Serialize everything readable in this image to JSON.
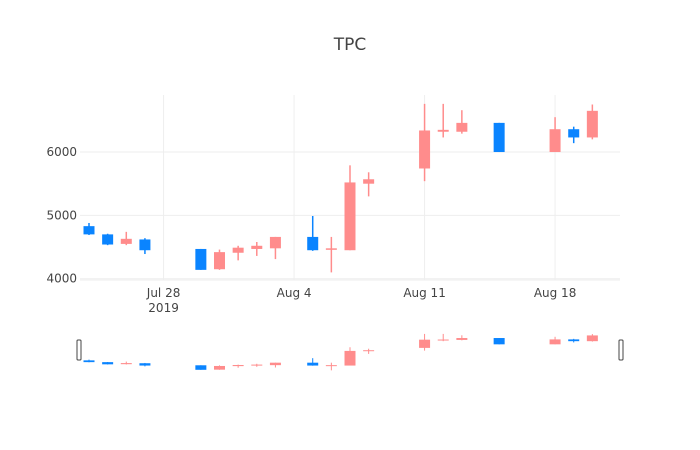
{
  "chart_data": {
    "type": "candlestick",
    "title": "TPC",
    "x_ticks": [
      {
        "date": "2019-07-28",
        "label": "Jul 28",
        "sublabel": "2019"
      },
      {
        "date": "2019-08-04",
        "label": "Aug 4",
        "sublabel": ""
      },
      {
        "date": "2019-08-11",
        "label": "Aug 11",
        "sublabel": ""
      },
      {
        "date": "2019-08-18",
        "label": "Aug 18",
        "sublabel": ""
      }
    ],
    "y_ticks": [
      4000,
      5000,
      6000
    ],
    "y_tick_labels": [
      "4000",
      "5000",
      "6000"
    ],
    "xlim": [
      "2019-07-24",
      "2019-08-21"
    ],
    "ylim": [
      3980,
      6900
    ],
    "grid": true,
    "rangeslider": true,
    "increasing_color": "#ff8c8c",
    "decreasing_color": "#0a84ff",
    "candles": [
      {
        "date": "2019-07-24",
        "open": 4830,
        "high": 4880,
        "low": 4690,
        "close": 4700
      },
      {
        "date": "2019-07-25",
        "open": 4700,
        "high": 4710,
        "low": 4530,
        "close": 4540
      },
      {
        "date": "2019-07-26",
        "open": 4550,
        "high": 4740,
        "low": 4530,
        "close": 4630
      },
      {
        "date": "2019-07-27",
        "open": 4620,
        "high": 4640,
        "low": 4390,
        "close": 4450
      },
      {
        "date": "2019-07-30",
        "open": 4470,
        "high": 4470,
        "low": 4140,
        "close": 4140
      },
      {
        "date": "2019-07-31",
        "open": 4150,
        "high": 4460,
        "low": 4140,
        "close": 4420
      },
      {
        "date": "2019-08-01",
        "open": 4410,
        "high": 4520,
        "low": 4290,
        "close": 4490
      },
      {
        "date": "2019-08-02",
        "open": 4470,
        "high": 4580,
        "low": 4360,
        "close": 4520
      },
      {
        "date": "2019-08-03",
        "open": 4480,
        "high": 4660,
        "low": 4310,
        "close": 4660
      },
      {
        "date": "2019-08-05",
        "open": 4660,
        "high": 4990,
        "low": 4440,
        "close": 4450
      },
      {
        "date": "2019-08-06",
        "open": 4460,
        "high": 4660,
        "low": 4100,
        "close": 4480
      },
      {
        "date": "2019-08-07",
        "open": 4450,
        "high": 5790,
        "low": 4450,
        "close": 5520
      },
      {
        "date": "2019-08-08",
        "open": 5500,
        "high": 5680,
        "low": 5300,
        "close": 5570
      },
      {
        "date": "2019-08-11",
        "open": 5740,
        "high": 6760,
        "low": 5540,
        "close": 6340
      },
      {
        "date": "2019-08-12",
        "open": 6320,
        "high": 6760,
        "low": 6230,
        "close": 6350
      },
      {
        "date": "2019-08-13",
        "open": 6320,
        "high": 6660,
        "low": 6290,
        "close": 6460
      },
      {
        "date": "2019-08-15",
        "open": 6460,
        "high": 6460,
        "low": 6000,
        "close": 6000
      },
      {
        "date": "2019-08-18",
        "open": 6000,
        "high": 6550,
        "low": 6000,
        "close": 6360
      },
      {
        "date": "2019-08-19",
        "open": 6360,
        "high": 6400,
        "low": 6140,
        "close": 6230
      },
      {
        "date": "2019-08-20",
        "open": 6230,
        "high": 6750,
        "low": 6200,
        "close": 6650
      }
    ]
  }
}
